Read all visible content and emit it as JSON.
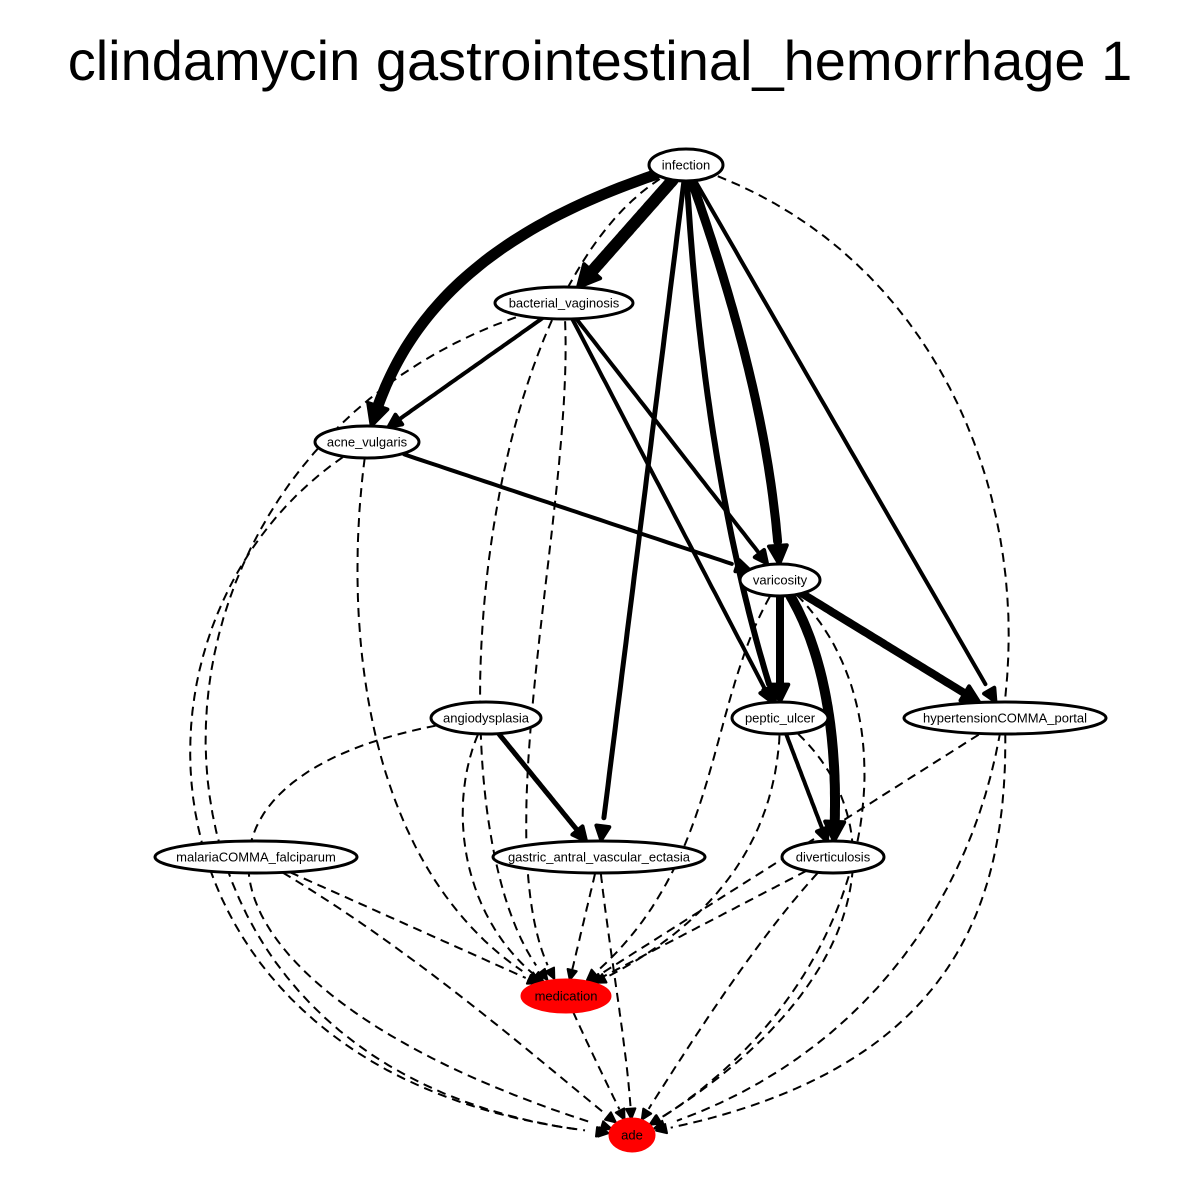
{
  "title": "clindamycin gastrointestinal_hemorrhage 1",
  "colors": {
    "highlight": "#ff0000",
    "node_fill": "#ffffff",
    "stroke": "#000000"
  },
  "nodes": [
    {
      "id": "infection",
      "label": "infection",
      "highlighted": false
    },
    {
      "id": "bacterial_vaginosis",
      "label": "bacterial_vaginosis",
      "highlighted": false
    },
    {
      "id": "acne_vulgaris",
      "label": "acne_vulgaris",
      "highlighted": false
    },
    {
      "id": "varicosity",
      "label": "varicosity",
      "highlighted": false
    },
    {
      "id": "angiodysplasia",
      "label": "angiodysplasia",
      "highlighted": false
    },
    {
      "id": "peptic_ulcer",
      "label": "peptic_ulcer",
      "highlighted": false
    },
    {
      "id": "hypertensionCOMMA_portal",
      "label": "hypertensionCOMMA_portal",
      "highlighted": false
    },
    {
      "id": "malariaCOMMA_falciparum",
      "label": "malariaCOMMA_falciparum",
      "highlighted": false
    },
    {
      "id": "gastric_antral_vascular_ectasia",
      "label": "gastric_antral_vascular_ectasia",
      "highlighted": false
    },
    {
      "id": "diverticulosis",
      "label": "diverticulosis",
      "highlighted": false
    },
    {
      "id": "medication",
      "label": "medication",
      "highlighted": true
    },
    {
      "id": "ade",
      "label": "ade",
      "highlighted": true
    }
  ],
  "edges": [
    {
      "from": "infection",
      "to": "bacterial_vaginosis",
      "style": "solid",
      "weight": 12
    },
    {
      "from": "infection",
      "to": "acne_vulgaris",
      "style": "solid",
      "weight": 11
    },
    {
      "from": "infection",
      "to": "varicosity",
      "style": "solid",
      "weight": 9
    },
    {
      "from": "infection",
      "to": "peptic_ulcer",
      "style": "solid",
      "weight": 6
    },
    {
      "from": "infection",
      "to": "hypertensionCOMMA_portal",
      "style": "solid",
      "weight": 4
    },
    {
      "from": "infection",
      "to": "gastric_antral_vascular_ectasia",
      "style": "solid",
      "weight": 5
    },
    {
      "from": "infection",
      "to": "medication",
      "style": "dashed",
      "weight": 2
    },
    {
      "from": "infection",
      "to": "ade",
      "style": "dashed",
      "weight": 2
    },
    {
      "from": "bacterial_vaginosis",
      "to": "acne_vulgaris",
      "style": "solid",
      "weight": 4
    },
    {
      "from": "bacterial_vaginosis",
      "to": "varicosity",
      "style": "solid",
      "weight": 4
    },
    {
      "from": "bacterial_vaginosis",
      "to": "peptic_ulcer",
      "style": "solid",
      "weight": 4
    },
    {
      "from": "bacterial_vaginosis",
      "to": "medication",
      "style": "dashed",
      "weight": 2
    },
    {
      "from": "bacterial_vaginosis",
      "to": "ade",
      "style": "dashed",
      "weight": 2
    },
    {
      "from": "acne_vulgaris",
      "to": "varicosity",
      "style": "solid",
      "weight": 4
    },
    {
      "from": "acne_vulgaris",
      "to": "medication",
      "style": "dashed",
      "weight": 2
    },
    {
      "from": "acne_vulgaris",
      "to": "ade",
      "style": "dashed",
      "weight": 2
    },
    {
      "from": "varicosity",
      "to": "peptic_ulcer",
      "style": "solid",
      "weight": 8
    },
    {
      "from": "varicosity",
      "to": "hypertensionCOMMA_portal",
      "style": "solid",
      "weight": 8
    },
    {
      "from": "varicosity",
      "to": "diverticulosis",
      "style": "solid",
      "weight": 10
    },
    {
      "from": "varicosity",
      "to": "medication",
      "style": "dashed",
      "weight": 2
    },
    {
      "from": "varicosity",
      "to": "ade",
      "style": "dashed",
      "weight": 2
    },
    {
      "from": "angiodysplasia",
      "to": "gastric_antral_vascular_ectasia",
      "style": "solid",
      "weight": 5
    },
    {
      "from": "angiodysplasia",
      "to": "medication",
      "style": "dashed",
      "weight": 2
    },
    {
      "from": "angiodysplasia",
      "to": "ade",
      "style": "dashed",
      "weight": 2
    },
    {
      "from": "peptic_ulcer",
      "to": "diverticulosis",
      "style": "solid",
      "weight": 4
    },
    {
      "from": "peptic_ulcer",
      "to": "medication",
      "style": "dashed",
      "weight": 2
    },
    {
      "from": "peptic_ulcer",
      "to": "ade",
      "style": "dashed",
      "weight": 2
    },
    {
      "from": "hypertensionCOMMA_portal",
      "to": "medication",
      "style": "dashed",
      "weight": 2
    },
    {
      "from": "hypertensionCOMMA_portal",
      "to": "ade",
      "style": "dashed",
      "weight": 2
    },
    {
      "from": "malariaCOMMA_falciparum",
      "to": "medication",
      "style": "dashed",
      "weight": 2
    },
    {
      "from": "malariaCOMMA_falciparum",
      "to": "ade",
      "style": "dashed",
      "weight": 2
    },
    {
      "from": "gastric_antral_vascular_ectasia",
      "to": "medication",
      "style": "dashed",
      "weight": 2
    },
    {
      "from": "gastric_antral_vascular_ectasia",
      "to": "ade",
      "style": "dashed",
      "weight": 2
    },
    {
      "from": "diverticulosis",
      "to": "medication",
      "style": "dashed",
      "weight": 2
    },
    {
      "from": "diverticulosis",
      "to": "ade",
      "style": "dashed",
      "weight": 2
    },
    {
      "from": "medication",
      "to": "ade",
      "style": "dashed",
      "weight": 2
    }
  ]
}
